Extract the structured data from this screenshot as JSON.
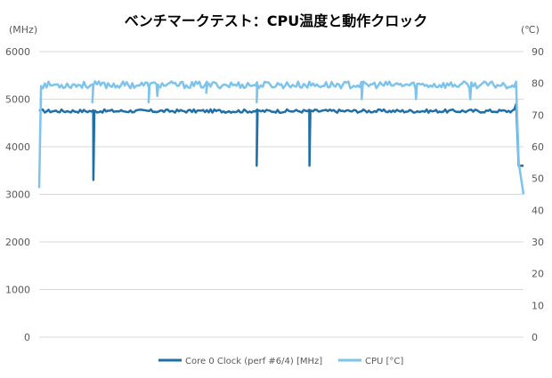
{
  "chart_data": {
    "type": "line",
    "title": "ベンチマークテスト：CPU温度と動作クロック",
    "y_left": {
      "unit": "(MHz)",
      "min": 0,
      "max": 6000,
      "ticks": [
        "0",
        "1000",
        "2000",
        "3000",
        "4000",
        "5000",
        "6000"
      ]
    },
    "y_right": {
      "unit": "(℃)",
      "min": 0,
      "max": 90,
      "ticks": [
        "0",
        "10",
        "20",
        "30",
        "40",
        "50",
        "60",
        "70",
        "80",
        "90"
      ]
    },
    "grid": true,
    "legend_position": "bottom",
    "series": [
      {
        "name": "Core 0 Clock (perf #6/4) [MHz]",
        "axis": "left",
        "color": "#1f6fa8",
        "baseline": 4750,
        "start": 4750,
        "dips": [
          {
            "at": 0.112,
            "value": 3300
          },
          {
            "at": 0.449,
            "value": 3600
          },
          {
            "at": 0.558,
            "value": 3600
          }
        ],
        "end": [
          {
            "at": 0.985,
            "value": 4900
          },
          {
            "at": 0.99,
            "value": 3600
          },
          {
            "at": 1.0,
            "value": 3600
          }
        ]
      },
      {
        "name": "CPU [°C]",
        "axis": "right",
        "color": "#7cc3ee",
        "baseline": 79.5,
        "start": 47,
        "dips": [
          {
            "at": 0.11,
            "value": 74
          },
          {
            "at": 0.226,
            "value": 74
          },
          {
            "at": 0.244,
            "value": 76
          },
          {
            "at": 0.345,
            "value": 77
          },
          {
            "at": 0.449,
            "value": 74
          },
          {
            "at": 0.666,
            "value": 75
          },
          {
            "at": 0.778,
            "value": 75
          },
          {
            "at": 0.89,
            "value": 75
          }
        ],
        "end": [
          {
            "at": 0.99,
            "value": 55
          },
          {
            "at": 1.0,
            "value": 45
          }
        ]
      }
    ]
  }
}
